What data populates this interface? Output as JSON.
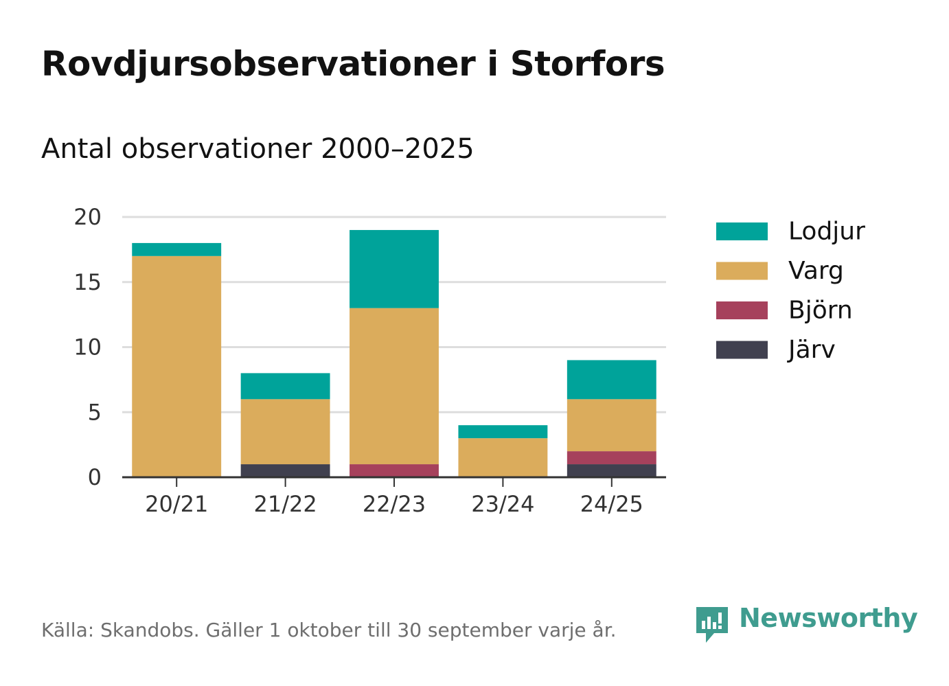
{
  "title": "Rovdjursobservationer i Storfors",
  "subtitle": "Antal observationer 2000–2025",
  "source": "Källa: Skandobs. Gäller 1 oktober till 30 september varje år.",
  "logo": {
    "name": "Newsworthy",
    "icon": "newsworthy-logo-icon",
    "color": "#3f9c8f"
  },
  "colors": {
    "grid": "#dddddd",
    "axis": "#333333",
    "tick_text": "#333333"
  },
  "chart_data": {
    "type": "bar",
    "stacked": true,
    "categories": [
      "20/21",
      "21/22",
      "22/23",
      "23/24",
      "24/25"
    ],
    "series": [
      {
        "name": "Järv",
        "color": "#40404f",
        "values": [
          0,
          1,
          0,
          0,
          1
        ]
      },
      {
        "name": "Björn",
        "color": "#a6415c",
        "values": [
          0,
          0,
          1,
          0,
          1
        ]
      },
      {
        "name": "Varg",
        "color": "#dbac5c",
        "values": [
          17,
          5,
          12,
          3,
          4
        ]
      },
      {
        "name": "Lodjur",
        "color": "#00a39a",
        "values": [
          1,
          2,
          6,
          1,
          3
        ]
      }
    ],
    "legend_order": [
      "Lodjur",
      "Varg",
      "Björn",
      "Järv"
    ],
    "legend_position": "right",
    "ylim": [
      0,
      20
    ],
    "yticks": [
      0,
      5,
      10,
      15,
      20
    ],
    "grid": true
  }
}
